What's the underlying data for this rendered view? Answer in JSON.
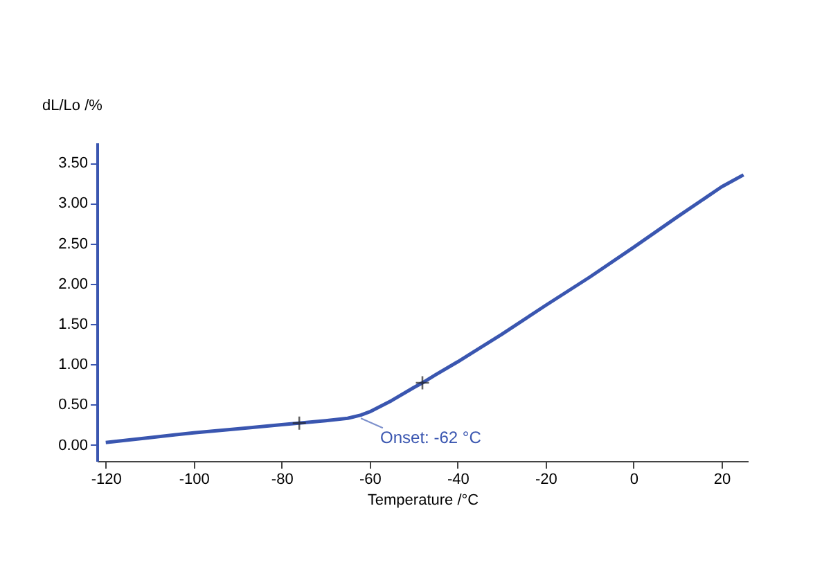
{
  "chart_data": {
    "type": "line",
    "xlabel": "Temperature /°C",
    "ylabel": "dL/Lo /%",
    "xlim": [
      -122,
      26
    ],
    "xticks": [
      -120,
      -100,
      -80,
      -60,
      -40,
      -20,
      0,
      20
    ],
    "ylim": [
      -0.2,
      3.75
    ],
    "yticks": [
      {
        "value": 0,
        "label": "0.00"
      },
      {
        "value": 0.5,
        "label": "0.50"
      },
      {
        "value": 1,
        "label": "1.00"
      },
      {
        "value": 1.5,
        "label": "1.50"
      },
      {
        "value": 2,
        "label": "2.00"
      },
      {
        "value": 2.5,
        "label": "2.50"
      },
      {
        "value": 3,
        "label": "3.00"
      },
      {
        "value": 3.5,
        "label": "3.50"
      }
    ],
    "grid": false,
    "legend": false,
    "series": [
      {
        "color": "#3a56b0",
        "line_style": "solid",
        "marker": "none",
        "x": [
          -120,
          -110,
          -100,
          -90,
          -80,
          -70,
          -65,
          -62,
          -60,
          -55,
          -50,
          -48,
          -45,
          -40,
          -30,
          -20,
          -10,
          0,
          10,
          20,
          25
        ],
        "values": [
          0.03,
          0.09,
          0.15,
          0.2,
          0.25,
          0.3,
          0.33,
          0.37,
          0.41,
          0.55,
          0.71,
          0.77,
          0.87,
          1.03,
          1.37,
          1.73,
          2.08,
          2.45,
          2.83,
          3.2,
          3.35
        ]
      },
      {
        "type": "scatter",
        "color": "#222222",
        "marker": "cross",
        "x": [
          -76,
          -48
        ],
        "values": [
          0.27,
          0.77
        ]
      }
    ],
    "annotations": [
      {
        "text": "Onset: -62 °C",
        "x": -62,
        "y": 0.33
      }
    ]
  }
}
